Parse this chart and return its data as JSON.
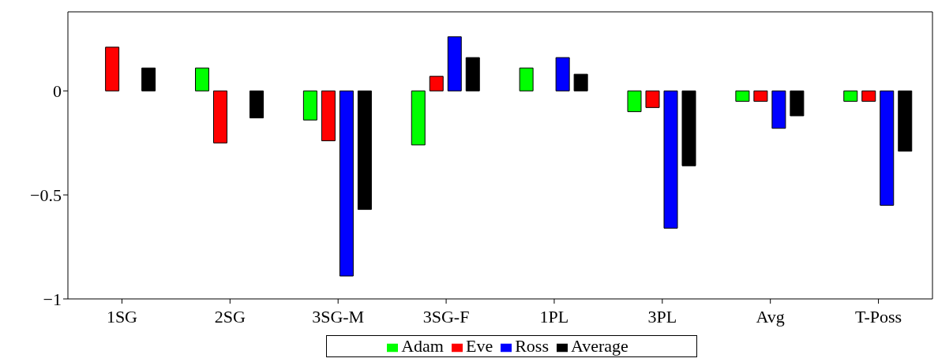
{
  "chart_data": {
    "type": "bar",
    "categories": [
      "1SG",
      "2SG",
      "3SG-M",
      "3SG-F",
      "1PL",
      "3PL",
      "Avg",
      "T-Poss"
    ],
    "series": [
      {
        "name": "Adam",
        "color": "#00ff00",
        "values": [
          0,
          0.11,
          -0.14,
          -0.26,
          0.11,
          -0.1,
          -0.05,
          -0.05
        ]
      },
      {
        "name": "Eve",
        "color": "#ff0000",
        "values": [
          0.21,
          -0.25,
          -0.24,
          0.07,
          0,
          -0.08,
          -0.05,
          -0.05
        ]
      },
      {
        "name": "Ross",
        "color": "#0000ff",
        "values": [
          0,
          0,
          -0.89,
          0.26,
          0.16,
          -0.66,
          -0.18,
          -0.55
        ]
      },
      {
        "name": "Average",
        "color": "#000000",
        "values": [
          0.11,
          -0.13,
          -0.57,
          0.16,
          0.08,
          -0.36,
          -0.12,
          -0.29
        ]
      }
    ],
    "ylim": [
      -1,
      0.38
    ],
    "yticks": [
      -1,
      -0.5,
      0
    ],
    "grid": false,
    "legend": "bottom"
  }
}
